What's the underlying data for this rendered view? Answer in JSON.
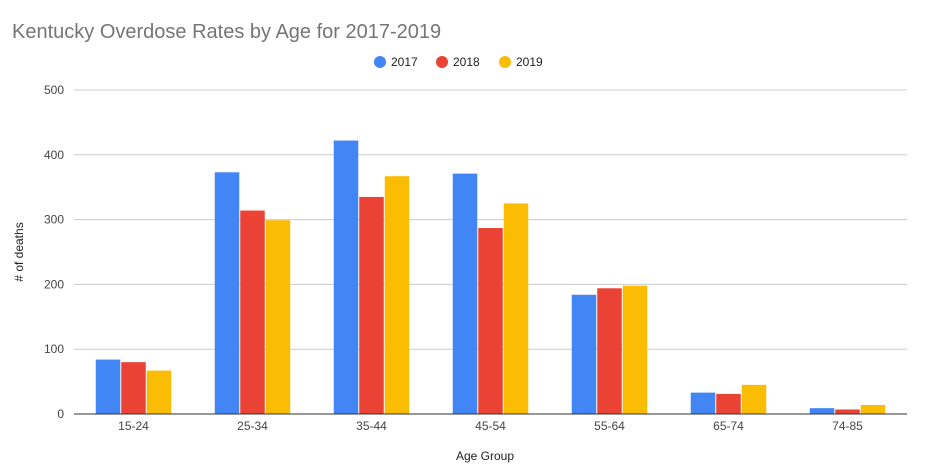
{
  "chart_data": {
    "type": "bar",
    "title": "Kentucky Overdose Rates by Age for 2017-2019",
    "xlabel": "Age Group",
    "ylabel": "# of deaths",
    "ylim": [
      0,
      500
    ],
    "yticks": [
      0,
      100,
      200,
      300,
      400,
      500
    ],
    "grid": true,
    "legend_position": "top",
    "categories": [
      "15-24",
      "25-34",
      "35-44",
      "45-54",
      "55-64",
      "65-74",
      "74-85"
    ],
    "series": [
      {
        "name": "2017",
        "color": "#4285f4",
        "values": [
          84,
          373,
          422,
          371,
          184,
          33,
          9
        ]
      },
      {
        "name": "2018",
        "color": "#ea4335",
        "values": [
          80,
          314,
          335,
          287,
          194,
          31,
          7
        ]
      },
      {
        "name": "2019",
        "color": "#fbbc04",
        "values": [
          67,
          299,
          367,
          325,
          198,
          45,
          14
        ]
      }
    ]
  }
}
